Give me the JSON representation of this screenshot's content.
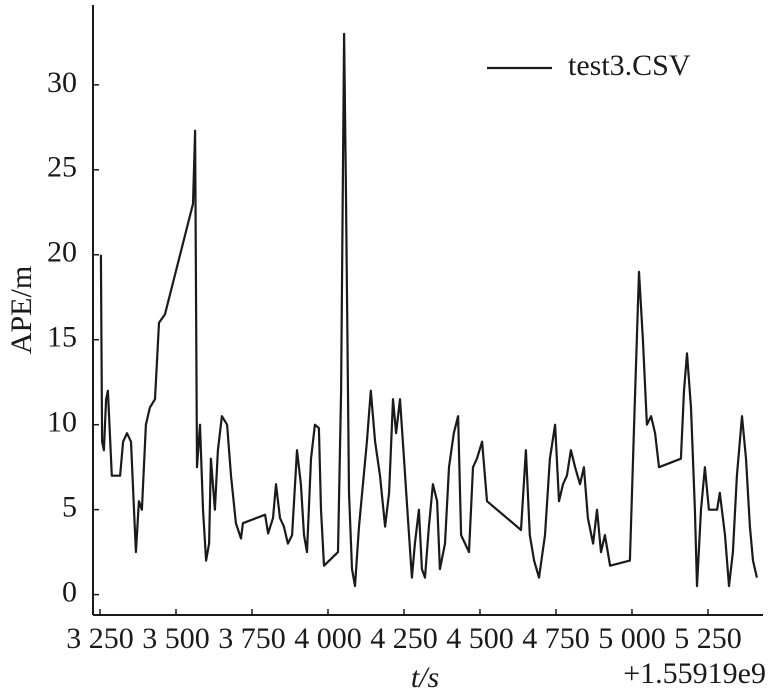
{
  "chart_data": {
    "type": "line",
    "xlabel": "t/s",
    "ylabel": "APE/m",
    "x_offset_label": "+1.55919e9",
    "xlim": [
      3227,
      5431
    ],
    "ylim": [
      -1.2,
      34.7
    ],
    "xticks": [
      {
        "value": 3250,
        "label": "3 250"
      },
      {
        "value": 3500,
        "label": "3 500"
      },
      {
        "value": 3750,
        "label": "3 750"
      },
      {
        "value": 4000,
        "label": "4 000"
      },
      {
        "value": 4250,
        "label": "4 250"
      },
      {
        "value": 4500,
        "label": "4 500"
      },
      {
        "value": 4750,
        "label": "4 750"
      },
      {
        "value": 5000,
        "label": "5 000"
      },
      {
        "value": 5250,
        "label": "5 250"
      }
    ],
    "yticks": [
      0,
      5,
      10,
      15,
      20,
      25,
      30
    ],
    "legend": "upper right",
    "x": [
      3253,
      3257,
      3263,
      3270,
      3276,
      3289,
      3316,
      3326,
      3339,
      3352,
      3362,
      3368,
      3378,
      3388,
      3401,
      3414,
      3431,
      3444,
      3464,
      3556,
      3563,
      3569,
      3579,
      3589,
      3599,
      3609,
      3615,
      3628,
      3638,
      3651,
      3668,
      3681,
      3697,
      3714,
      3720,
      3793,
      3803,
      3819,
      3829,
      3842,
      3855,
      3868,
      3882,
      3898,
      3911,
      3921,
      3931,
      3944,
      3957,
      3970,
      3977,
      3987,
      4033,
      4043,
      4053,
      4059,
      4069,
      4079,
      4089,
      4102,
      4128,
      4141,
      4155,
      4171,
      4188,
      4201,
      4214,
      4224,
      4237,
      4250,
      4263,
      4276,
      4286,
      4299,
      4309,
      4319,
      4332,
      4345,
      4359,
      4368,
      4385,
      4398,
      4414,
      4428,
      4438,
      4451,
      4464,
      4477,
      4490,
      4507,
      4523,
      4635,
      4651,
      4664,
      4678,
      4694,
      4714,
      4730,
      4747,
      4760,
      4773,
      4786,
      4799,
      4813,
      4829,
      4842,
      4855,
      4872,
      4885,
      4898,
      4911,
      4928,
      4993,
      5007,
      5023,
      5036,
      5049,
      5063,
      5076,
      5089,
      5161,
      5171,
      5181,
      5194,
      5207,
      5214,
      5227,
      5240,
      5253,
      5280,
      5289,
      5306,
      5319,
      5332,
      5345,
      5362,
      5375,
      5388,
      5398,
      5411
    ],
    "series": [
      {
        "name": "test3.CSV",
        "color": "#1a1a1a",
        "values": [
          20,
          9,
          8.5,
          11.5,
          12,
          7,
          7,
          9,
          9.5,
          9,
          5,
          2.5,
          5.5,
          5,
          10,
          11,
          11.5,
          16,
          16.5,
          23,
          27.3,
          7.5,
          10,
          5,
          2,
          3,
          8,
          5,
          8.5,
          10.5,
          10,
          7,
          4.2,
          3.3,
          4.2,
          4.7,
          3.6,
          4.5,
          6.5,
          4.5,
          4,
          3,
          3.5,
          8.5,
          6.5,
          3.5,
          2.5,
          8,
          10,
          9.8,
          5,
          1.7,
          2.5,
          12,
          33,
          24,
          6,
          1.5,
          0.5,
          4,
          9,
          12,
          9,
          7,
          4,
          6,
          11.5,
          9.5,
          11.5,
          8,
          4.5,
          1,
          3,
          5,
          1.5,
          1,
          4,
          6.5,
          5.5,
          1.5,
          3,
          7.5,
          9.5,
          10.5,
          3.5,
          3,
          2.5,
          7.5,
          8,
          9,
          5.5,
          3.8,
          8.5,
          3.5,
          2,
          1,
          3.5,
          8,
          10,
          5.5,
          6.5,
          7,
          8.5,
          7.5,
          6.5,
          7.5,
          4.5,
          3,
          5,
          2.5,
          3.5,
          1.7,
          2,
          10,
          19,
          15,
          10,
          10.5,
          9.5,
          7.5,
          8,
          12,
          14.2,
          11,
          5,
          0.5,
          5,
          7.5,
          5,
          5,
          6,
          3.5,
          0.5,
          2.5,
          7,
          10.5,
          8,
          4,
          2,
          1
        ]
      }
    ]
  }
}
